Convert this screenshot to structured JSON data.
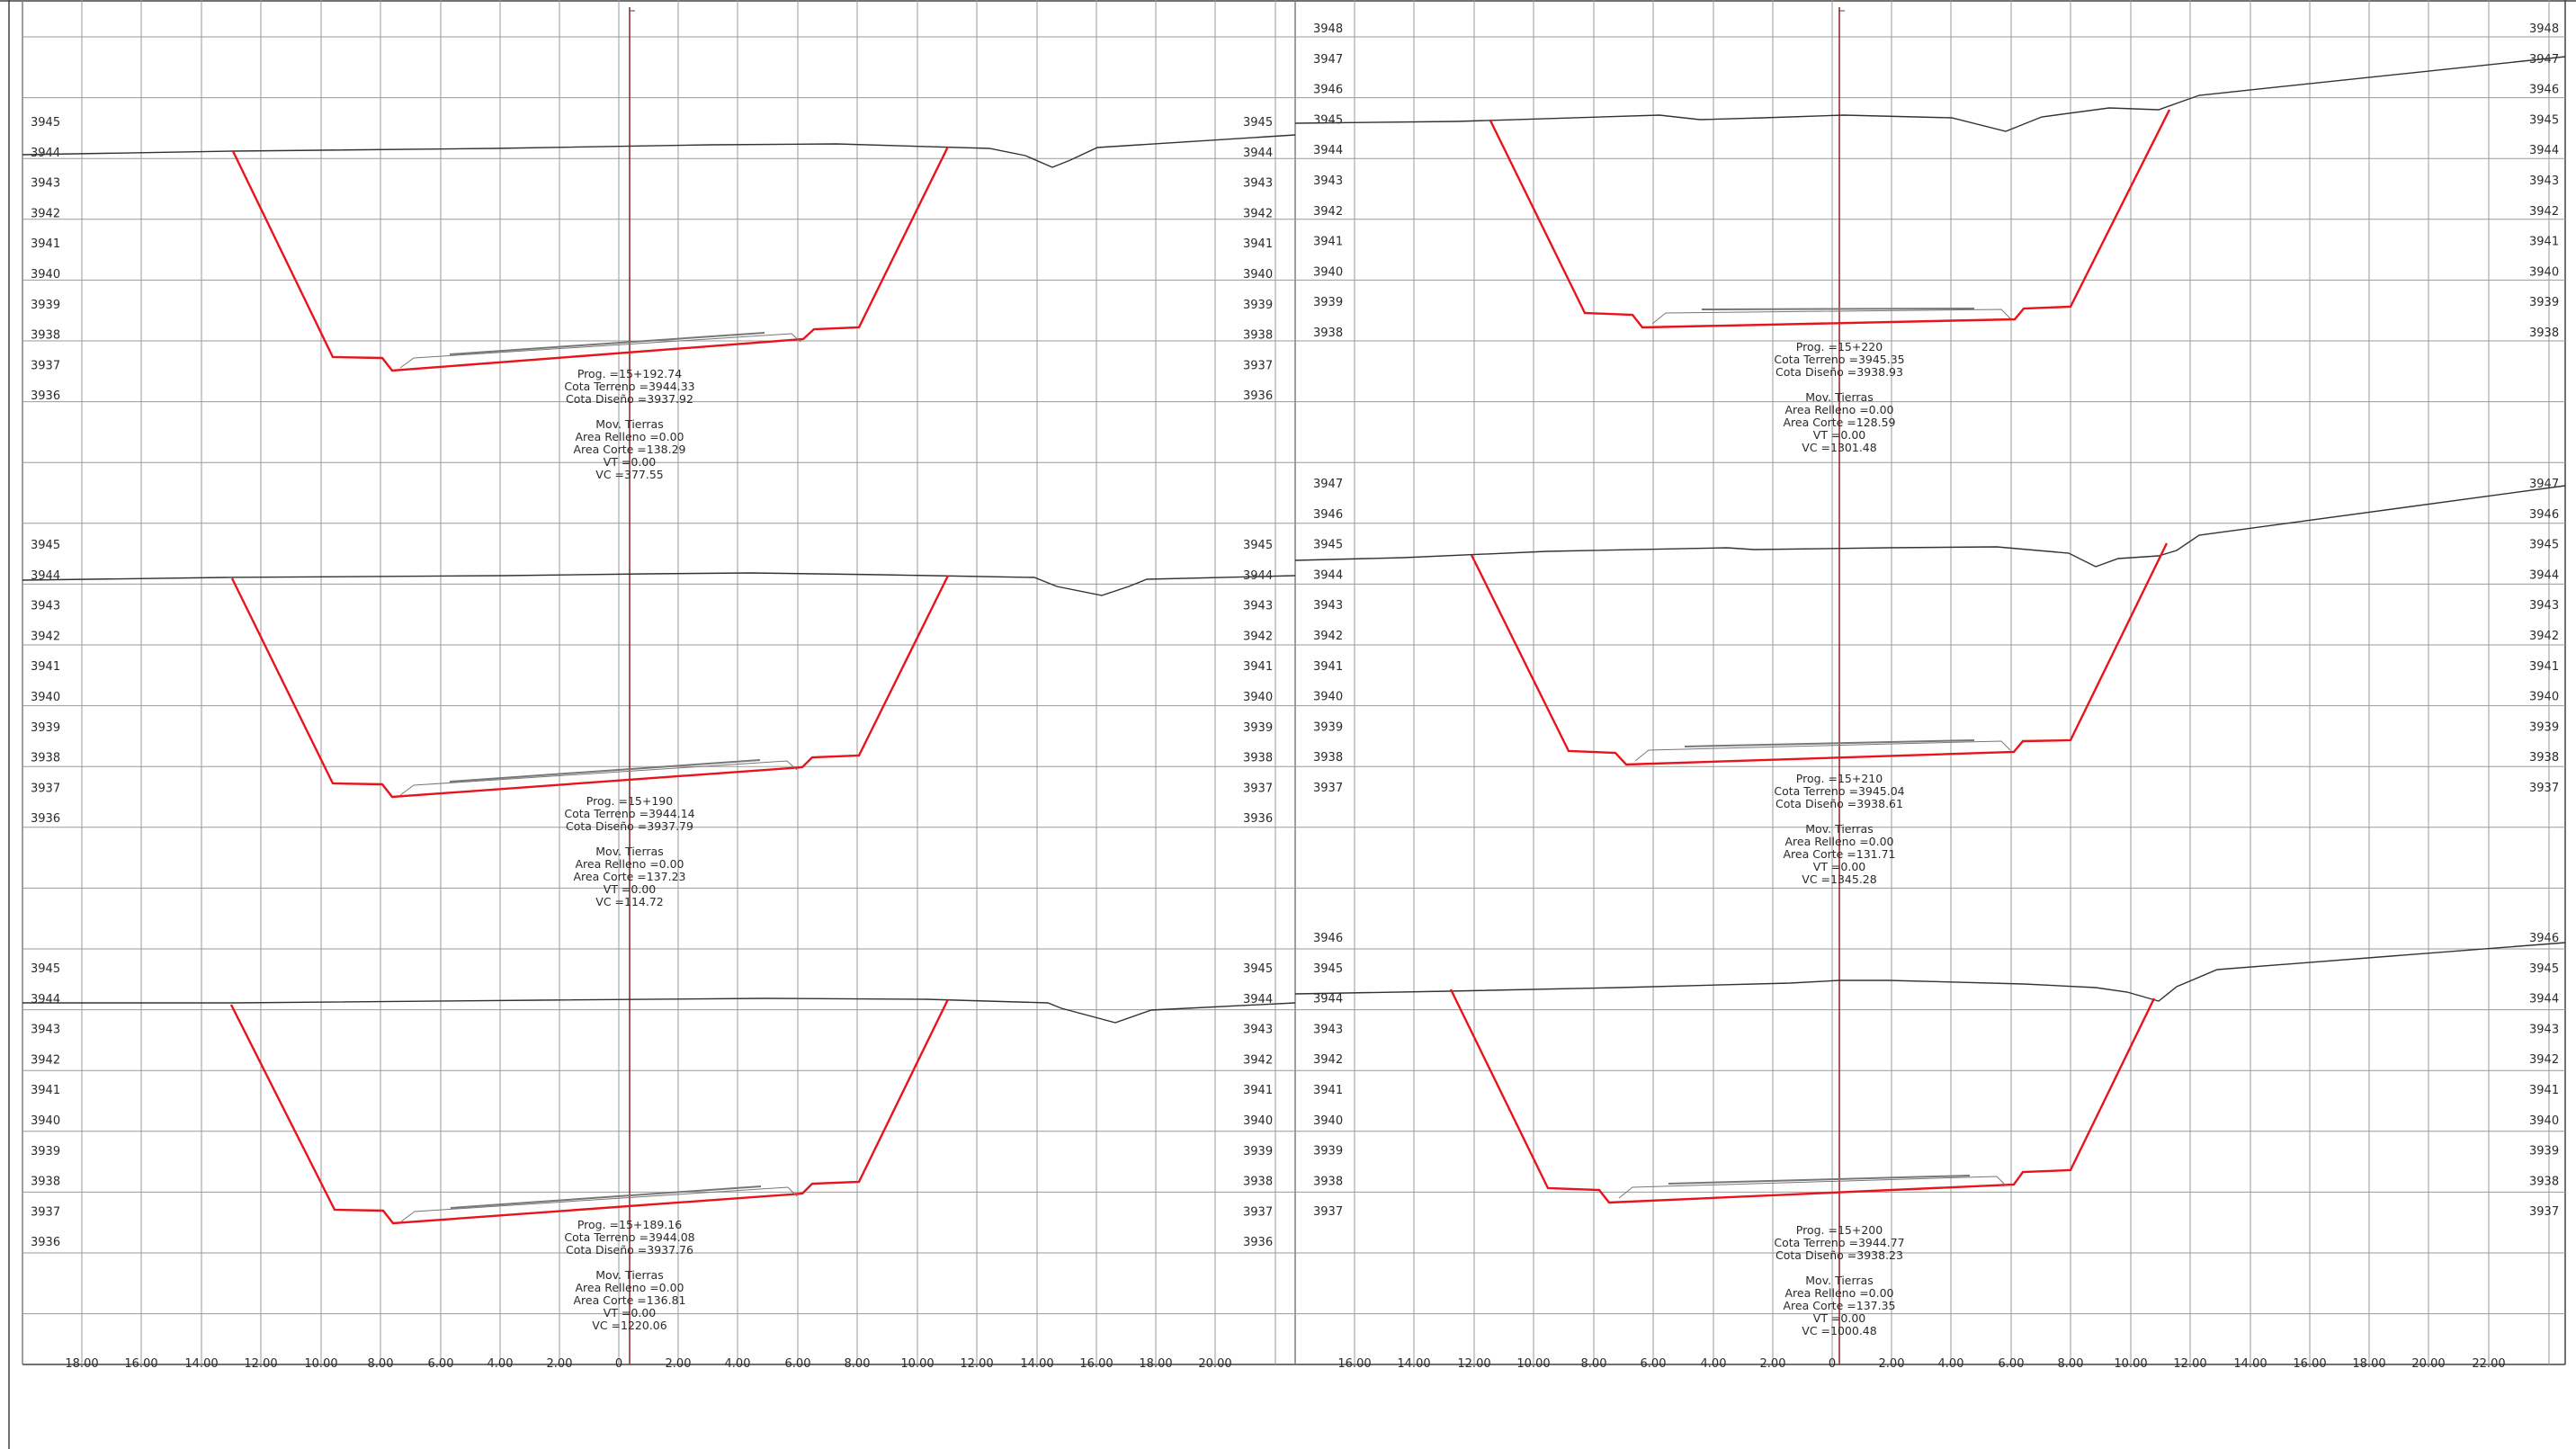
{
  "sections": [
    {
      "id": "L1",
      "y_labels": [
        "3945",
        "3944",
        "3943",
        "3942",
        "3941",
        "3940",
        "3939",
        "3938",
        "3937",
        "3936"
      ],
      "right_y_labels": [
        "3945",
        "3944",
        "3943",
        "3942",
        "3941",
        "3940",
        "3939",
        "3938",
        "3937",
        "3936"
      ],
      "info_lines": [
        "Prog. =15+192.74",
        "Cota Terreno =3944.33",
        "Cota Diseño =3937.92",
        "",
        "Mov. Tierras",
        "Area Relleno =0.00",
        "Area Corte =138.29",
        "VT =0.00",
        "VC =377.55"
      ]
    },
    {
      "id": "L2",
      "y_labels": [
        "3945",
        "3944",
        "3943",
        "3942",
        "3941",
        "3940",
        "3939",
        "3938",
        "3937",
        "3936"
      ],
      "right_y_labels": [
        "3945",
        "3944",
        "3943",
        "3942",
        "3941",
        "3940",
        "3939",
        "3938",
        "3937",
        "3936"
      ],
      "info_lines": [
        "Prog. =15+190",
        "Cota Terreno =3944.14",
        "Cota Diseño =3937.79",
        "",
        "Mov. Tierras",
        "Area Relleno =0.00",
        "Area Corte =137.23",
        "VT =0.00",
        "VC =114.72"
      ]
    },
    {
      "id": "L3",
      "y_labels": [
        "3945",
        "3944",
        "3943",
        "3942",
        "3941",
        "3940",
        "3939",
        "3938",
        "3937",
        "3936"
      ],
      "right_y_labels": [
        "3945",
        "3944",
        "3943",
        "3942",
        "3941",
        "3940",
        "3939",
        "3938",
        "3937",
        "3936"
      ],
      "info_lines": [
        "Prog. =15+189.16",
        "Cota Terreno =3944.08",
        "Cota Diseño =3937.76",
        "",
        "Mov. Tierras",
        "Area Relleno =0.00",
        "Area Corte =136.81",
        "VT =0.00",
        "VC =1220.06"
      ]
    },
    {
      "id": "R1",
      "y_labels": [
        "3948",
        "3947",
        "3946",
        "3945",
        "3944",
        "3943",
        "3942",
        "3941",
        "3940",
        "3939",
        "3938"
      ],
      "right_y_labels": [
        "3948",
        "3947",
        "3946",
        "3945",
        "3944",
        "3943",
        "3942",
        "3941",
        "3940",
        "3939",
        "3938"
      ],
      "info_lines": [
        "Prog. =15+220",
        "Cota Terreno =3945.35",
        "Cota Diseño =3938.93",
        "",
        "Mov. Tierras",
        "Area Relleno =0.00",
        "Area Corte =128.59",
        "VT =0.00",
        "VC =1301.48"
      ]
    },
    {
      "id": "R2",
      "y_labels": [
        "3947",
        "3946",
        "3945",
        "3944",
        "3943",
        "3942",
        "3941",
        "3940",
        "3939",
        "3938",
        "3937"
      ],
      "right_y_labels": [
        "3947",
        "3946",
        "3945",
        "3944",
        "3943",
        "3942",
        "3941",
        "3940",
        "3939",
        "3938",
        "3937"
      ],
      "info_lines": [
        "Prog. =15+210",
        "Cota Terreno =3945.04",
        "Cota Diseño =3938.61",
        "",
        "Mov. Tierras",
        "Area Relleno =0.00",
        "Area Corte =131.71",
        "VT =0.00",
        "VC =1345.28"
      ]
    },
    {
      "id": "R3",
      "y_labels": [
        "3946",
        "3945",
        "3944",
        "3943",
        "3942",
        "3941",
        "3940",
        "3939",
        "3938",
        "3937"
      ],
      "right_y_labels": [
        "3946",
        "3945",
        "3944",
        "3943",
        "3942",
        "3941",
        "3940",
        "3939",
        "3938",
        "3937"
      ],
      "info_lines": [
        "Prog. =15+200",
        "Cota Terreno =3944.77",
        "Cota Diseño =3938.23",
        "",
        "Mov. Tierras",
        "Area Relleno =0.00",
        "Area Corte =137.35",
        "VT =0.00",
        "VC =1000.48"
      ]
    }
  ],
  "left_x_labels": [
    "18.00",
    "16.00",
    "14.00",
    "12.00",
    "10.00",
    "8.00",
    "6.00",
    "4.00",
    "2.00",
    "0",
    "2.00",
    "4.00",
    "6.00",
    "8.00",
    "10.00",
    "12.00",
    "14.00",
    "16.00",
    "18.00",
    "20.00"
  ],
  "right_x_labels": [
    "16.00",
    "14.00",
    "12.00",
    "10.00",
    "8.00",
    "6.00",
    "4.00",
    "2.00",
    "0",
    "2.00",
    "4.00",
    "6.00",
    "8.00",
    "10.00",
    "12.00",
    "14.00",
    "16.00",
    "18.00",
    "20.00",
    "22.00"
  ],
  "colors": {
    "grid": "#9a9a9a",
    "terrain": "#333333",
    "design": "#e8141b",
    "centerline": "#8b2020",
    "pavement": "#777777"
  }
}
